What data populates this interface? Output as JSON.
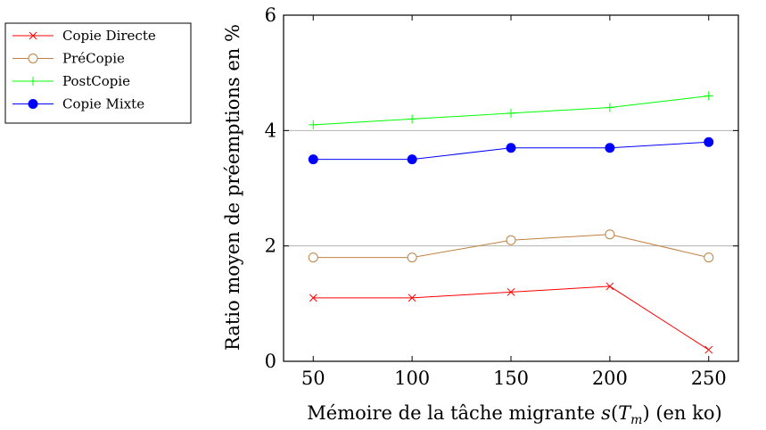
{
  "chart_data": {
    "type": "line",
    "title": "",
    "xlabel_parts": [
      "Mémoire de la tâche migrante ",
      "s",
      "(",
      "T",
      "m",
      ")",
      " (en ko)"
    ],
    "ylabel": "Ratio moyen de préemptions en %",
    "x": [
      50,
      100,
      150,
      200,
      250
    ],
    "xticks": [
      50,
      100,
      150,
      200,
      250
    ],
    "yticks": [
      0,
      2,
      4,
      6
    ],
    "xlim": [
      35,
      265
    ],
    "ylim": [
      0,
      6
    ],
    "grid": "horizontal",
    "legend_position": "top-left, outside plot",
    "series": [
      {
        "name": "Copie Directe",
        "values": [
          1.1,
          1.1,
          1.2,
          1.3,
          0.2
        ],
        "color": "#ff0000",
        "marker": "x"
      },
      {
        "name": "PréCopie",
        "values": [
          1.8,
          1.8,
          2.1,
          2.2,
          1.8
        ],
        "color": "#bf8040",
        "marker": "open-circle"
      },
      {
        "name": "PostCopie",
        "values": [
          4.1,
          4.2,
          4.3,
          4.4,
          4.6
        ],
        "color": "#00ff00",
        "marker": "plus"
      },
      {
        "name": "Copie Mixte",
        "values": [
          3.5,
          3.5,
          3.7,
          3.7,
          3.8
        ],
        "color": "#0000ff",
        "marker": "filled-circle"
      }
    ]
  }
}
